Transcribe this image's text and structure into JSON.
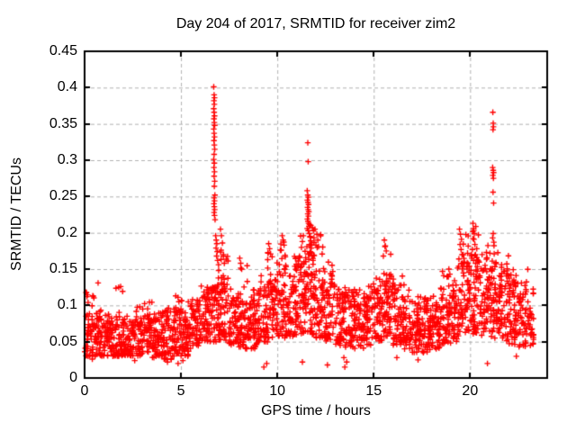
{
  "chart_data": {
    "type": "scatter",
    "title": "Day 204 of 2017, SRMTID for receiver zim2",
    "xlabel": "GPS time / hours",
    "ylabel": "SRMTID / TECUs",
    "xlim": [
      0,
      24
    ],
    "ylim": [
      0,
      0.45
    ],
    "xticks": [
      0,
      5,
      10,
      15,
      20
    ],
    "xtick_labels": [
      "0",
      "5",
      "10",
      "15",
      "20"
    ],
    "yticks": [
      0,
      0.05,
      0.1,
      0.15,
      0.2,
      0.25,
      0.3,
      0.35,
      0.4,
      0.45
    ],
    "ytick_labels": [
      "0",
      "0.05",
      "0.1",
      "0.15",
      "0.2",
      "0.25",
      "0.3",
      "0.35",
      "0.4",
      "0.45"
    ],
    "grid": true,
    "legend": "none",
    "marker": "plus",
    "marker_size": 7,
    "colors": {
      "marker": "#ff0000",
      "axis": "#000000",
      "grid": "#b0b0b0",
      "background": "#ffffff",
      "text": "#000000"
    },
    "feature_points": [
      [
        6.7,
        0.401
      ],
      [
        6.72,
        0.39
      ],
      [
        6.74,
        0.386
      ],
      [
        6.71,
        0.382
      ],
      [
        6.73,
        0.377
      ],
      [
        6.7,
        0.371
      ],
      [
        6.72,
        0.366
      ],
      [
        6.74,
        0.361
      ],
      [
        6.71,
        0.357
      ],
      [
        6.73,
        0.352
      ],
      [
        6.75,
        0.348
      ],
      [
        6.7,
        0.343
      ],
      [
        6.72,
        0.337
      ],
      [
        6.74,
        0.332
      ],
      [
        6.71,
        0.327
      ],
      [
        6.73,
        0.321
      ],
      [
        6.75,
        0.315
      ],
      [
        6.72,
        0.308
      ],
      [
        6.7,
        0.301
      ],
      [
        6.73,
        0.296
      ],
      [
        6.71,
        0.29
      ],
      [
        6.74,
        0.284
      ],
      [
        6.72,
        0.278
      ],
      [
        6.75,
        0.271
      ],
      [
        6.73,
        0.264
      ],
      [
        6.76,
        0.252
      ],
      [
        6.72,
        0.248
      ],
      [
        6.74,
        0.244
      ],
      [
        6.71,
        0.24
      ],
      [
        6.73,
        0.236
      ],
      [
        6.75,
        0.232
      ],
      [
        6.72,
        0.228
      ],
      [
        6.74,
        0.224
      ],
      [
        6.77,
        0.218
      ],
      [
        6.8,
        0.196
      ],
      [
        6.83,
        0.19
      ],
      [
        6.86,
        0.185
      ],
      [
        6.82,
        0.179
      ],
      [
        6.88,
        0.174
      ],
      [
        6.85,
        0.168
      ],
      [
        6.9,
        0.162
      ],
      [
        6.95,
        0.156
      ],
      [
        7.05,
        0.205
      ],
      [
        7.1,
        0.196
      ],
      [
        7.15,
        0.186
      ],
      [
        7.08,
        0.176
      ],
      [
        7.2,
        0.168
      ],
      [
        7.25,
        0.158
      ],
      [
        11.58,
        0.324
      ],
      [
        11.6,
        0.298
      ],
      [
        11.55,
        0.258
      ],
      [
        11.58,
        0.252
      ],
      [
        11.61,
        0.249
      ],
      [
        11.56,
        0.245
      ],
      [
        11.59,
        0.242
      ],
      [
        11.62,
        0.239
      ],
      [
        11.57,
        0.235
      ],
      [
        11.6,
        0.232
      ],
      [
        11.63,
        0.229
      ],
      [
        11.58,
        0.226
      ],
      [
        11.61,
        0.223
      ],
      [
        11.56,
        0.219
      ],
      [
        11.59,
        0.216
      ],
      [
        11.62,
        0.213
      ],
      [
        11.64,
        0.209
      ],
      [
        11.55,
        0.206
      ],
      [
        11.6,
        0.203
      ],
      [
        11.66,
        0.199
      ],
      [
        11.7,
        0.194
      ],
      [
        11.73,
        0.189
      ],
      [
        11.68,
        0.184
      ],
      [
        11.76,
        0.179
      ],
      [
        11.72,
        0.174
      ],
      [
        11.8,
        0.168
      ],
      [
        11.85,
        0.162
      ],
      [
        11.35,
        0.196
      ],
      [
        11.3,
        0.188
      ],
      [
        11.25,
        0.18
      ],
      [
        11.87,
        0.203
      ],
      [
        11.9,
        0.193
      ],
      [
        11.95,
        0.205
      ],
      [
        12.05,
        0.198
      ],
      [
        12.1,
        0.19
      ],
      [
        12.0,
        0.183
      ],
      [
        21.18,
        0.366
      ],
      [
        21.2,
        0.351
      ],
      [
        21.21,
        0.346
      ],
      [
        21.19,
        0.342
      ],
      [
        21.17,
        0.29
      ],
      [
        21.2,
        0.286
      ],
      [
        21.22,
        0.283
      ],
      [
        21.18,
        0.279
      ],
      [
        21.21,
        0.275
      ],
      [
        21.19,
        0.256
      ],
      [
        21.22,
        0.241
      ],
      [
        21.2,
        0.199
      ],
      [
        21.17,
        0.193
      ],
      [
        21.23,
        0.187
      ],
      [
        21.25,
        0.171
      ],
      [
        21.15,
        0.161
      ],
      [
        19.45,
        0.205
      ],
      [
        19.5,
        0.198
      ],
      [
        19.55,
        0.191
      ],
      [
        19.48,
        0.184
      ],
      [
        19.53,
        0.177
      ],
      [
        19.58,
        0.17
      ],
      [
        19.42,
        0.164
      ],
      [
        19.6,
        0.158
      ],
      [
        20.15,
        0.213
      ],
      [
        20.18,
        0.206
      ],
      [
        20.22,
        0.199
      ],
      [
        20.2,
        0.191
      ],
      [
        20.25,
        0.184
      ],
      [
        20.12,
        0.177
      ],
      [
        20.28,
        0.17
      ],
      [
        20.18,
        0.162
      ],
      [
        10.25,
        0.196
      ],
      [
        10.3,
        0.19
      ],
      [
        10.35,
        0.183
      ],
      [
        10.2,
        0.176
      ],
      [
        10.4,
        0.169
      ],
      [
        9.55,
        0.185
      ],
      [
        9.6,
        0.178
      ],
      [
        9.65,
        0.171
      ],
      [
        9.5,
        0.163
      ],
      [
        15.55,
        0.19
      ],
      [
        15.6,
        0.182
      ],
      [
        15.65,
        0.175
      ],
      [
        15.5,
        0.168
      ],
      [
        0.08,
        0.118
      ],
      [
        0.12,
        0.112
      ],
      [
        0.18,
        0.104
      ],
      [
        0.7,
        0.131
      ],
      [
        1.87,
        0.126
      ],
      [
        8.05,
        0.165
      ],
      [
        8.1,
        0.158
      ],
      [
        8.15,
        0.15
      ],
      [
        18.9,
        0.15
      ],
      [
        18.95,
        0.143
      ],
      [
        4.3,
        0.022
      ],
      [
        4.85,
        0.02
      ],
      [
        5.1,
        0.024
      ],
      [
        9.3,
        0.015
      ],
      [
        9.45,
        0.02
      ],
      [
        11.3,
        0.022
      ],
      [
        12.6,
        0.018
      ],
      [
        13.5,
        0.015
      ],
      [
        13.6,
        0.022
      ],
      [
        13.45,
        0.028
      ],
      [
        16.2,
        0.028
      ],
      [
        17.3,
        0.025
      ],
      [
        20.9,
        0.02
      ],
      [
        22.4,
        0.03
      ],
      [
        2.6,
        0.024
      ],
      [
        0.4,
        0.026
      ]
    ],
    "cloud": {
      "seed": 20172040,
      "tail_fraction": 0.16,
      "segments": [
        [
          0.0,
          0.5,
          0.03,
          0.085,
          0.125,
          55
        ],
        [
          0.5,
          0.5,
          0.03,
          0.08,
          0.105,
          55
        ],
        [
          1.0,
          0.5,
          0.03,
          0.075,
          0.095,
          55
        ],
        [
          1.5,
          0.5,
          0.03,
          0.08,
          0.135,
          55
        ],
        [
          2.0,
          0.5,
          0.03,
          0.075,
          0.095,
          55
        ],
        [
          2.5,
          0.5,
          0.03,
          0.08,
          0.1,
          55
        ],
        [
          3.0,
          0.5,
          0.032,
          0.085,
          0.105,
          55
        ],
        [
          3.5,
          0.5,
          0.028,
          0.08,
          0.095,
          55
        ],
        [
          4.0,
          0.5,
          0.025,
          0.08,
          0.1,
          55
        ],
        [
          4.5,
          0.5,
          0.03,
          0.09,
          0.115,
          55
        ],
        [
          5.0,
          0.5,
          0.03,
          0.085,
          0.11,
          55
        ],
        [
          5.5,
          0.5,
          0.04,
          0.1,
          0.12,
          55
        ],
        [
          6.0,
          0.5,
          0.048,
          0.11,
          0.13,
          55
        ],
        [
          6.5,
          0.5,
          0.05,
          0.125,
          0.155,
          60
        ],
        [
          7.0,
          0.5,
          0.05,
          0.13,
          0.175,
          60
        ],
        [
          7.5,
          0.5,
          0.045,
          0.11,
          0.13,
          55
        ],
        [
          8.0,
          0.5,
          0.04,
          0.11,
          0.165,
          55
        ],
        [
          8.5,
          0.5,
          0.04,
          0.105,
          0.13,
          55
        ],
        [
          9.0,
          0.5,
          0.048,
          0.12,
          0.15,
          55
        ],
        [
          9.5,
          0.5,
          0.055,
          0.135,
          0.185,
          60
        ],
        [
          10.0,
          0.5,
          0.055,
          0.145,
          0.195,
          60
        ],
        [
          10.5,
          0.5,
          0.055,
          0.14,
          0.175,
          60
        ],
        [
          11.0,
          0.5,
          0.06,
          0.16,
          0.2,
          65
        ],
        [
          11.5,
          0.5,
          0.06,
          0.175,
          0.215,
          65
        ],
        [
          12.0,
          0.5,
          0.055,
          0.15,
          0.205,
          60
        ],
        [
          12.5,
          0.5,
          0.05,
          0.13,
          0.16,
          55
        ],
        [
          13.0,
          0.5,
          0.045,
          0.115,
          0.15,
          55
        ],
        [
          13.5,
          0.5,
          0.04,
          0.11,
          0.13,
          55
        ],
        [
          14.0,
          0.5,
          0.04,
          0.105,
          0.125,
          55
        ],
        [
          14.5,
          0.5,
          0.045,
          0.11,
          0.13,
          55
        ],
        [
          15.0,
          0.5,
          0.05,
          0.12,
          0.15,
          55
        ],
        [
          15.5,
          0.5,
          0.055,
          0.14,
          0.185,
          60
        ],
        [
          16.0,
          0.5,
          0.045,
          0.12,
          0.15,
          55
        ],
        [
          16.5,
          0.5,
          0.04,
          0.105,
          0.13,
          55
        ],
        [
          17.0,
          0.5,
          0.035,
          0.095,
          0.115,
          55
        ],
        [
          17.5,
          0.5,
          0.035,
          0.095,
          0.115,
          55
        ],
        [
          18.0,
          0.5,
          0.04,
          0.1,
          0.125,
          55
        ],
        [
          18.5,
          0.5,
          0.045,
          0.11,
          0.15,
          55
        ],
        [
          19.0,
          0.5,
          0.05,
          0.12,
          0.155,
          55
        ],
        [
          19.5,
          0.5,
          0.06,
          0.155,
          0.2,
          60
        ],
        [
          20.0,
          0.5,
          0.06,
          0.165,
          0.21,
          60
        ],
        [
          20.5,
          0.5,
          0.058,
          0.15,
          0.185,
          60
        ],
        [
          21.0,
          0.5,
          0.055,
          0.15,
          0.19,
          60
        ],
        [
          21.5,
          0.5,
          0.05,
          0.14,
          0.175,
          58
        ],
        [
          22.0,
          0.5,
          0.045,
          0.13,
          0.16,
          55
        ],
        [
          22.5,
          0.5,
          0.04,
          0.115,
          0.15,
          50
        ],
        [
          23.0,
          0.3,
          0.035,
          0.095,
          0.125,
          28
        ]
      ]
    }
  }
}
